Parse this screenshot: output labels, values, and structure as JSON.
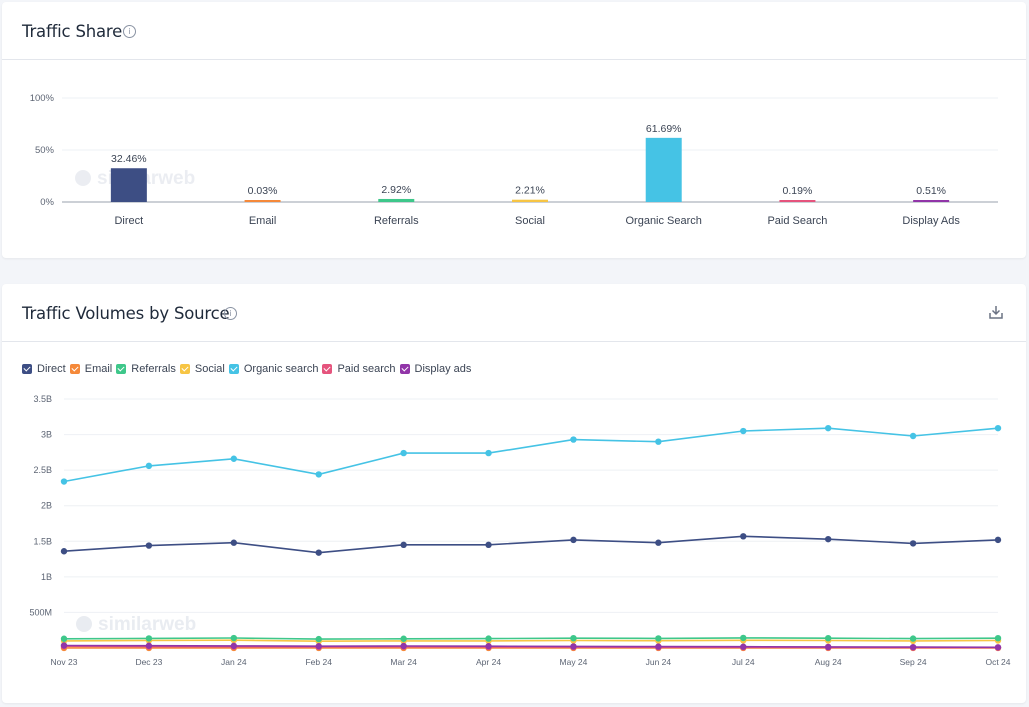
{
  "traffic_share": {
    "title": "Traffic Share",
    "info_icon": "i",
    "watermark": "similarweb",
    "y_ticks": [
      "100%",
      "50%",
      "0%"
    ],
    "chart_data": {
      "type": "bar",
      "categories": [
        "Direct",
        "Email",
        "Referrals",
        "Social",
        "Organic Search",
        "Paid Search",
        "Display Ads"
      ],
      "values": [
        32.46,
        0.03,
        2.92,
        2.21,
        61.69,
        0.19,
        0.51
      ],
      "data_labels": [
        "32.46%",
        "0.03%",
        "2.92%",
        "2.21%",
        "61.69%",
        "0.19%",
        "0.51%"
      ],
      "colors": [
        "#3d4e84",
        "#f5893a",
        "#3ec78a",
        "#f7c544",
        "#45c3e5",
        "#e5547d",
        "#9135a8"
      ],
      "ylim": [
        0,
        100
      ],
      "grid": true
    }
  },
  "traffic_volumes": {
    "title": "Traffic Volumes by Source",
    "info_icon": "i",
    "download_icon": "download-icon",
    "watermark": "similarweb",
    "y_ticks": [
      "3.5B",
      "3B",
      "2.5B",
      "2B",
      "1.5B",
      "1B",
      "500M"
    ],
    "chart_data": {
      "type": "line",
      "x": [
        "Nov 23",
        "Dec 23",
        "Jan 24",
        "Feb 24",
        "Mar 24",
        "Apr 24",
        "May 24",
        "Jun 24",
        "Jul 24",
        "Aug 24",
        "Sep 24",
        "Oct 24"
      ],
      "ylim": [
        0,
        3500000000
      ],
      "legend_position": "top-left",
      "grid": true,
      "series": [
        {
          "name": "Direct",
          "color": "#3d4e84",
          "values": [
            1360000000,
            1440000000,
            1480000000,
            1340000000,
            1450000000,
            1450000000,
            1520000000,
            1480000000,
            1570000000,
            1530000000,
            1470000000,
            1520000000
          ]
        },
        {
          "name": "Email",
          "color": "#f5893a",
          "values": [
            1000000,
            1000000,
            1000000,
            1000000,
            1000000,
            1000000,
            1000000,
            1000000,
            1000000,
            1000000,
            1000000,
            1000000
          ]
        },
        {
          "name": "Referrals",
          "color": "#3ec78a",
          "values": [
            130000000,
            135000000,
            140000000,
            125000000,
            130000000,
            132000000,
            138000000,
            135000000,
            142000000,
            138000000,
            132000000,
            138000000
          ]
        },
        {
          "name": "Social",
          "color": "#f7c544",
          "values": [
            100000000,
            105000000,
            110000000,
            95000000,
            100000000,
            100000000,
            105000000,
            102000000,
            108000000,
            105000000,
            100000000,
            105000000
          ]
        },
        {
          "name": "Organic search",
          "color": "#45c3e5",
          "values": [
            2340000000,
            2560000000,
            2660000000,
            2440000000,
            2740000000,
            2740000000,
            2930000000,
            2900000000,
            3050000000,
            3090000000,
            2980000000,
            3090000000
          ]
        },
        {
          "name": "Paid search",
          "color": "#e5547d",
          "values": [
            25000000,
            20000000,
            18000000,
            15000000,
            18000000,
            15000000,
            12000000,
            10000000,
            10000000,
            8000000,
            6000000,
            5000000
          ]
        },
        {
          "name": "Display ads",
          "color": "#9135a8",
          "values": [
            35000000,
            32000000,
            30000000,
            25000000,
            28000000,
            25000000,
            22000000,
            20000000,
            18000000,
            15000000,
            12000000,
            10000000
          ]
        }
      ]
    }
  }
}
